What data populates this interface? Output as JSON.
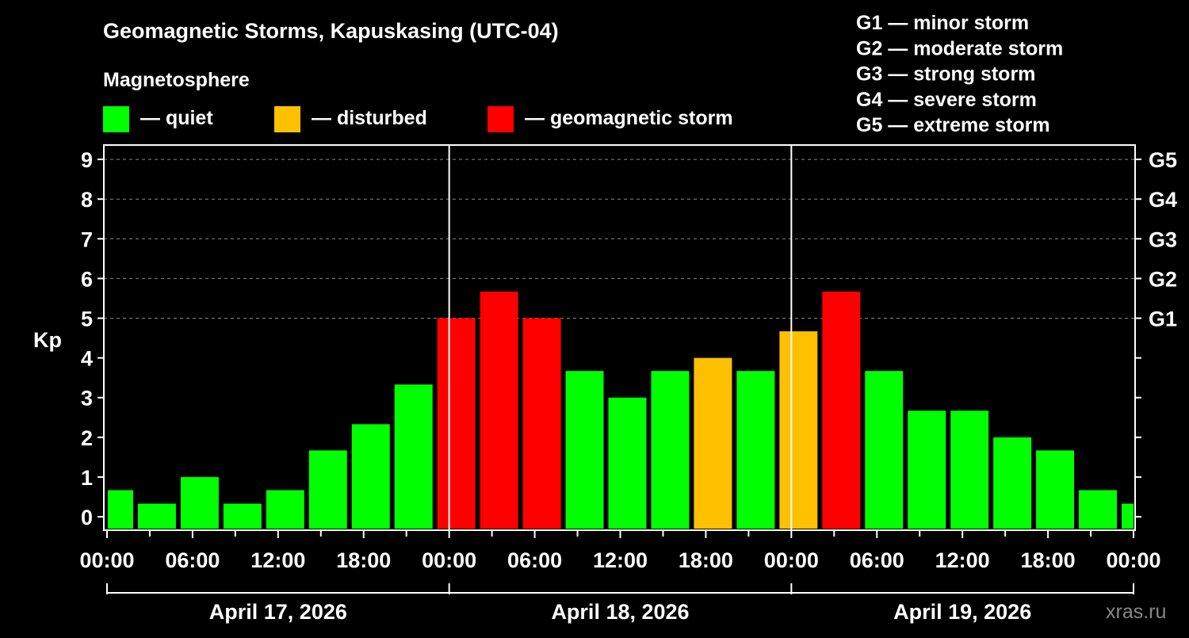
{
  "chart_data": {
    "type": "bar",
    "title": "Geomagnetic Storms, Kapuskasing (UTC-04)",
    "ylabel": "Kp",
    "ylim": [
      0,
      9
    ],
    "yticks": [
      "0",
      "1",
      "2",
      "3",
      "4",
      "5",
      "6",
      "7",
      "8",
      "9"
    ],
    "right_ticks": [
      {
        "kp": 5,
        "label": "G1"
      },
      {
        "kp": 6,
        "label": "G2"
      },
      {
        "kp": 7,
        "label": "G3"
      },
      {
        "kp": 8,
        "label": "G4"
      },
      {
        "kp": 9,
        "label": "G5"
      }
    ],
    "xticks": [
      "00:00",
      "06:00",
      "12:00",
      "18:00",
      "00:00",
      "06:00",
      "12:00",
      "18:00",
      "00:00",
      "06:00",
      "12:00",
      "18:00",
      "00:00"
    ],
    "days": [
      "April 17, 2026",
      "April 18, 2026",
      "April 19, 2026"
    ],
    "bar_start_hours": [
      -1,
      2,
      5,
      8,
      11,
      14,
      17,
      20,
      23,
      26,
      29,
      32,
      35,
      38,
      41,
      44,
      47,
      50,
      53,
      56,
      59,
      62,
      65,
      68,
      71
    ],
    "values": [
      0.67,
      0.33,
      1.0,
      0.33,
      0.67,
      1.67,
      2.33,
      3.33,
      5.0,
      5.67,
      5.0,
      3.67,
      3.0,
      3.67,
      4.0,
      3.67,
      4.67,
      5.67,
      3.67,
      2.67,
      2.67,
      2.0,
      1.67,
      0.67,
      0.33
    ],
    "x_range_hours": [
      0,
      72
    ],
    "legend": {
      "heading": "Magnetosphere",
      "items": [
        {
          "label": "— quiet",
          "color": "#00ff00"
        },
        {
          "label": "— disturbed",
          "color": "#ffc000"
        },
        {
          "label": "— geomagnetic storm",
          "color": "#ff0000"
        }
      ]
    },
    "storm_scale": [
      "G1 — minor storm",
      "G2 — moderate storm",
      "G3 — strong storm",
      "G4 — severe storm",
      "G5 — extreme storm"
    ],
    "colors": {
      "quiet": "#00ff00",
      "disturbed": "#ffc000",
      "storm": "#ff0000"
    },
    "grid": true,
    "watermark": "xras.ru"
  }
}
